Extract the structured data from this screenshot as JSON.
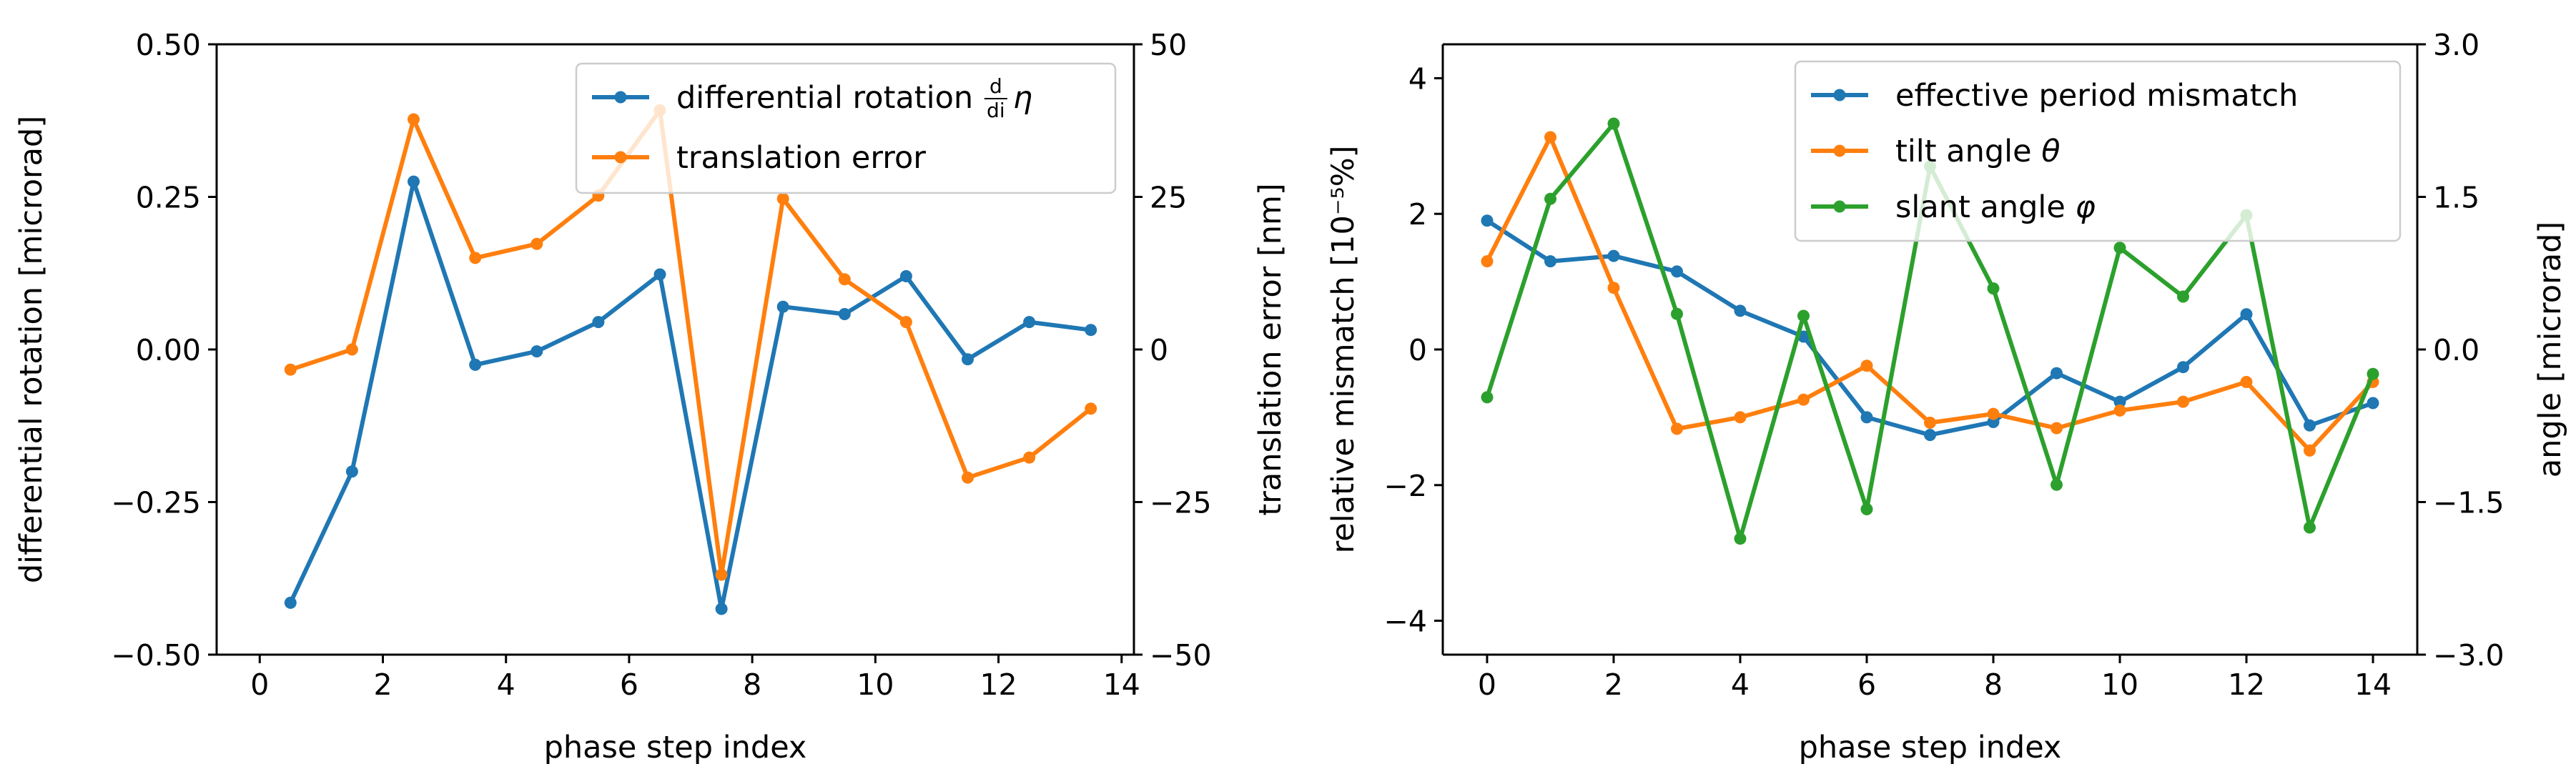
{
  "chart_data": [
    {
      "type": "line",
      "title": "",
      "xlabel": "phase step index",
      "ylabel_left": "differential rotation [microrad]",
      "ylabel_right": "translation error [nm]",
      "xlim": [
        -0.7,
        14.2
      ],
      "ylim_left": [
        -0.5,
        0.5
      ],
      "ylim_right": [
        -50,
        50
      ],
      "xticks": [
        0,
        2,
        4,
        6,
        8,
        10,
        12,
        14
      ],
      "xtick_labels": [
        "0",
        "2",
        "4",
        "6",
        "8",
        "10",
        "12",
        "14"
      ],
      "yticks_left": [
        -0.5,
        -0.25,
        0,
        0.25,
        0.5
      ],
      "ytick_labels_left": [
        "−0.50",
        "−0.25",
        "0.00",
        "0.25",
        "0.50"
      ],
      "yticks_right": [
        -50,
        -25,
        0,
        25,
        50
      ],
      "ytick_labels_right": [
        "−50",
        "−25",
        "0",
        "25",
        "50"
      ],
      "legend_position": "top-right",
      "series": [
        {
          "name": "differential rotation d/di η",
          "legend_main": "differential rotation ",
          "legend_frac_num": "d",
          "legend_frac_den": "di",
          "legend_symbol": "η",
          "axis": "left",
          "color": "#1f77b4",
          "x": [
            0.5,
            1.5,
            2.5,
            3.5,
            4.5,
            5.5,
            6.5,
            7.5,
            8.5,
            9.5,
            10.5,
            11.5,
            12.5,
            13.5
          ],
          "values": [
            -0.415,
            -0.2,
            0.275,
            -0.025,
            -0.003,
            0.045,
            0.123,
            -0.425,
            0.07,
            0.058,
            0.12,
            -0.016,
            0.045,
            0.032
          ]
        },
        {
          "name": "translation error",
          "legend_main": "translation error",
          "axis": "right",
          "color": "#ff7f0e",
          "x": [
            0.5,
            1.5,
            2.5,
            3.5,
            4.5,
            5.5,
            6.5,
            7.5,
            8.5,
            9.5,
            10.5,
            11.5,
            12.5,
            13.5
          ],
          "values": [
            -3.3,
            0.0,
            37.7,
            15.0,
            17.3,
            25.2,
            39.2,
            -36.9,
            24.7,
            11.5,
            4.5,
            -21.0,
            -17.7,
            -9.7
          ]
        }
      ]
    },
    {
      "type": "line",
      "title": "",
      "xlabel": "phase step index",
      "ylabel_left": "relative mismatch [10⁻⁵%]",
      "ylabel_right": "angle [microrad]",
      "xlim": [
        -0.7,
        14.7
      ],
      "ylim_left": [
        -4.5,
        4.5
      ],
      "ylim_right": [
        -3.0,
        3.0
      ],
      "xticks": [
        0,
        2,
        4,
        6,
        8,
        10,
        12,
        14
      ],
      "xtick_labels": [
        "0",
        "2",
        "4",
        "6",
        "8",
        "10",
        "12",
        "14"
      ],
      "yticks_left": [
        -4,
        -2,
        0,
        2,
        4
      ],
      "ytick_labels_left": [
        "−4",
        "−2",
        "0",
        "2",
        "4"
      ],
      "yticks_right": [
        -3.0,
        -1.5,
        0.0,
        1.5,
        3.0
      ],
      "ytick_labels_right": [
        "−3.0",
        "−1.5",
        "0.0",
        "1.5",
        "3.0"
      ],
      "legend_position": "top-right",
      "series": [
        {
          "name": "effective period mismatch",
          "legend_main": "effective period mismatch",
          "axis": "left",
          "color": "#1f77b4",
          "x": [
            0,
            1,
            2,
            3,
            4,
            5,
            6,
            7,
            8,
            9,
            10,
            11,
            12,
            13,
            14
          ],
          "values": [
            1.9,
            1.3,
            1.38,
            1.15,
            0.57,
            0.19,
            -1.0,
            -1.26,
            -1.07,
            -0.35,
            -0.77,
            -0.26,
            0.52,
            -1.12,
            -0.79
          ]
        },
        {
          "name": "tilt angle θ",
          "legend_main": "tilt angle ",
          "legend_symbol": "θ",
          "axis": "left",
          "color": "#ff7f0e",
          "x": [
            0,
            1,
            2,
            3,
            4,
            5,
            6,
            7,
            8,
            9,
            10,
            11,
            12,
            13,
            14
          ],
          "values": [
            1.3,
            3.13,
            0.91,
            -1.17,
            -1.0,
            -0.74,
            -0.24,
            -1.08,
            -0.95,
            -1.16,
            -0.9,
            -0.77,
            -0.48,
            -1.49,
            -0.48
          ]
        },
        {
          "name": "slant angle φ",
          "legend_main": "slant angle ",
          "legend_symbol": "φ",
          "axis": "right",
          "color": "#2ca02c",
          "x": [
            0,
            1,
            2,
            3,
            4,
            5,
            6,
            7,
            8,
            9,
            10,
            11,
            12,
            13,
            14
          ],
          "values": [
            -0.47,
            1.48,
            2.22,
            0.35,
            -1.86,
            0.33,
            -1.57,
            1.8,
            0.6,
            -1.33,
            1.0,
            0.52,
            1.32,
            -1.75,
            -0.24
          ]
        }
      ]
    }
  ]
}
